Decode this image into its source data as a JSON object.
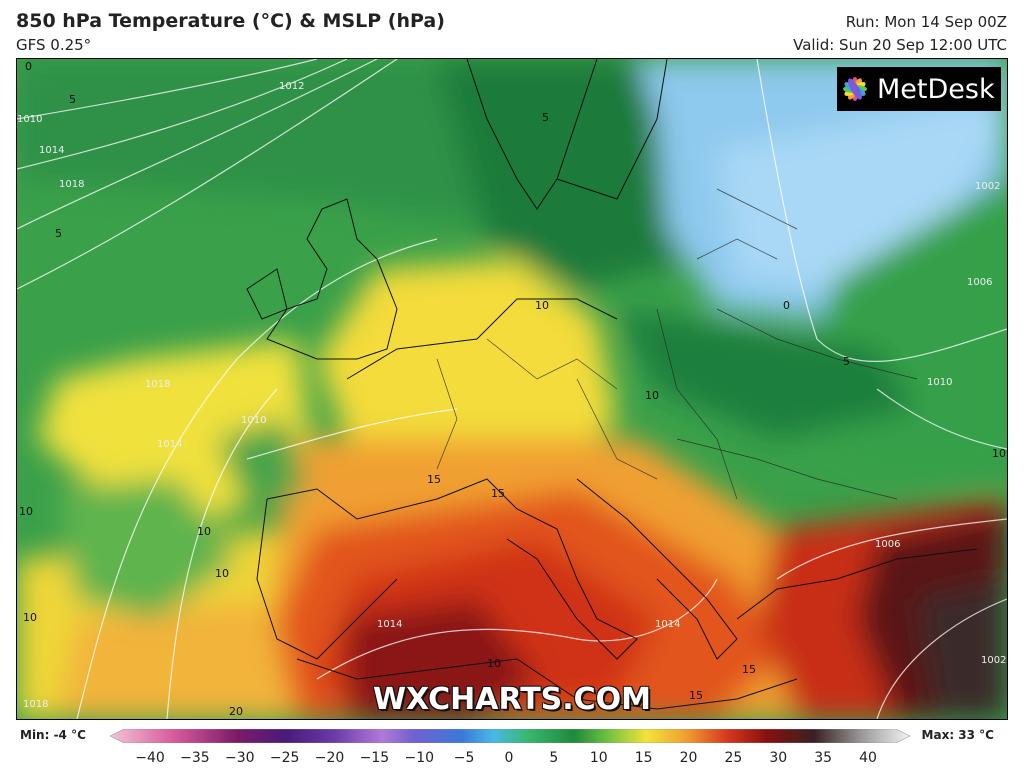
{
  "header": {
    "title": "850 hPa Temperature (°C) & MSLP (hPa)",
    "model": "GFS 0.25°",
    "run": "Run: Mon 14 Sep 00Z",
    "valid": "Valid: Sun 20 Sep 12:00 UTC"
  },
  "logo": {
    "text": "MetDesk",
    "icon": "flower-logo-icon"
  },
  "watermark": "WXCHARTS.COM",
  "legend": {
    "min_label": "Min: -4 °C",
    "max_label": "Max: 33 °C",
    "ticks": [
      "−40",
      "−35",
      "−30",
      "−25",
      "−20",
      "−15",
      "−10",
      "−5",
      "0",
      "5",
      "10",
      "15",
      "20",
      "25",
      "30",
      "35",
      "40"
    ]
  },
  "map_labels": {
    "temperature": [
      {
        "id": "t-0-nw",
        "text": "0"
      },
      {
        "id": "t-5-n",
        "text": "5"
      },
      {
        "id": "t-5-nw",
        "text": "5"
      },
      {
        "id": "t-5-uk",
        "text": "5"
      },
      {
        "id": "t-10-de",
        "text": "10"
      },
      {
        "id": "t-10-pl",
        "text": "10"
      },
      {
        "id": "t-10-e",
        "text": "10"
      },
      {
        "id": "t-10-atl1",
        "text": "10"
      },
      {
        "id": "t-10-atl2",
        "text": "10"
      },
      {
        "id": "t-10-atl3",
        "text": "10"
      },
      {
        "id": "t-10-atl4",
        "text": "10"
      },
      {
        "id": "t-15-fr",
        "text": "15"
      },
      {
        "id": "t-15-it",
        "text": "15"
      },
      {
        "id": "t-15-gr",
        "text": "15"
      },
      {
        "id": "t-15-af",
        "text": "15"
      },
      {
        "id": "t-10-af",
        "text": "10"
      },
      {
        "id": "t-20-sw",
        "text": "20"
      },
      {
        "id": "t-0-ru",
        "text": "0"
      },
      {
        "id": "t-5-ru",
        "text": "5"
      }
    ],
    "isobars": [
      {
        "id": "p-1012",
        "text": "1012"
      },
      {
        "id": "p-1010-nw",
        "text": "1010"
      },
      {
        "id": "p-1014-nw",
        "text": "1014"
      },
      {
        "id": "p-1018-nw",
        "text": "1018"
      },
      {
        "id": "p-1018-atl",
        "text": "1018"
      },
      {
        "id": "p-1014-atl",
        "text": "1014"
      },
      {
        "id": "p-1010-atl",
        "text": "1010"
      },
      {
        "id": "p-1006",
        "text": "1006"
      },
      {
        "id": "p-1002-ne",
        "text": "1002"
      },
      {
        "id": "p-1010-e",
        "text": "1010"
      },
      {
        "id": "p-1006-se",
        "text": "1006"
      },
      {
        "id": "p-1002-se",
        "text": "1002"
      },
      {
        "id": "p-1014-med",
        "text": "1014"
      },
      {
        "id": "p-1014-af",
        "text": "1014"
      },
      {
        "id": "p-1018-sw",
        "text": "1018"
      }
    ]
  },
  "colors": {
    "green_dark": "#1f7a3a",
    "green": "#3aa04a",
    "green_light": "#6cbf55",
    "yellow": "#f2e23a",
    "orange": "#f0a030",
    "red": "#d83a1e",
    "dark_red": "#8a1010",
    "cold_blue": "#8ec9ee"
  }
}
